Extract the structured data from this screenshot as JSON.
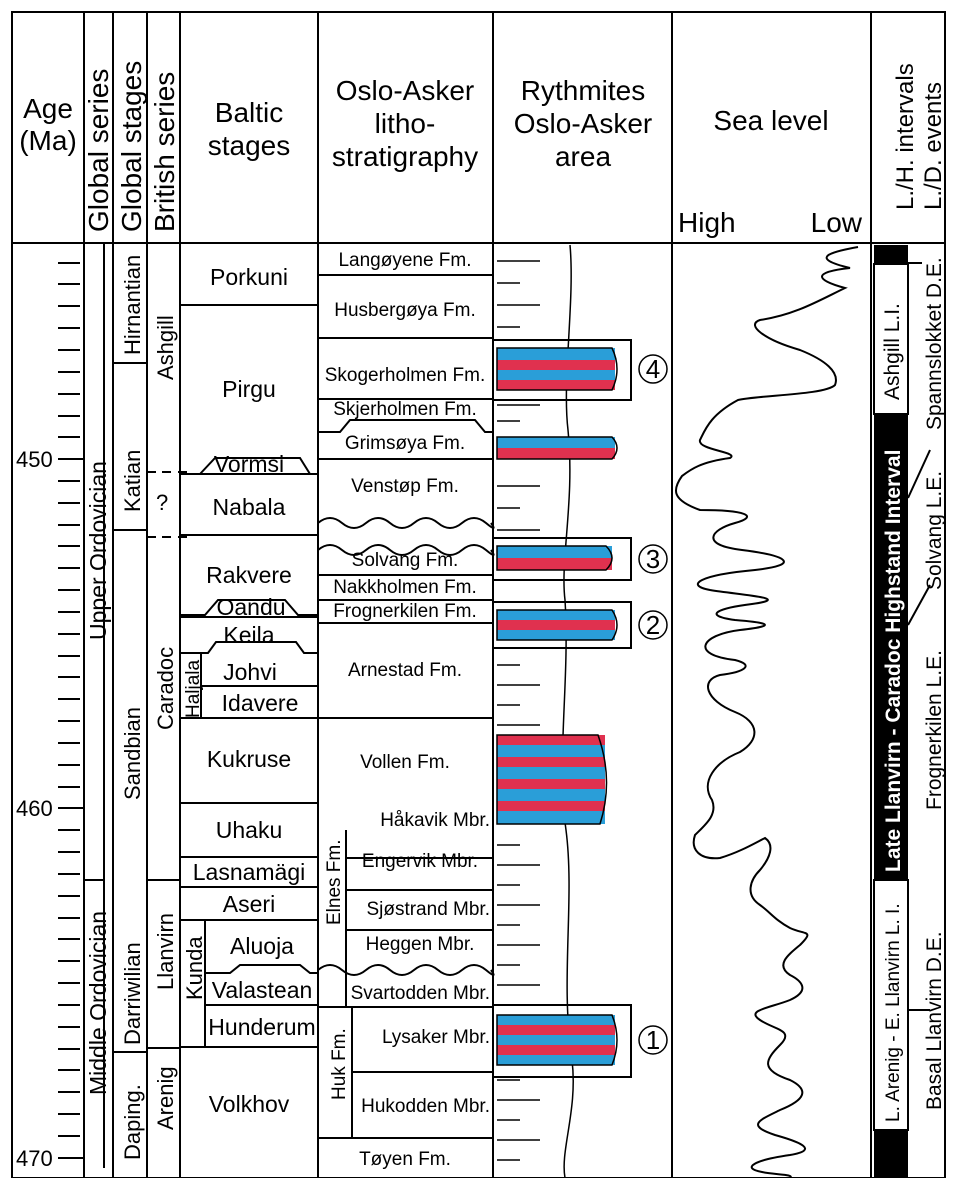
{
  "headers": {
    "age": [
      "Age",
      "(Ma)"
    ],
    "global_series": "Global series",
    "global_stages": "Global stages",
    "british_series": "British series",
    "baltic_stages": [
      "Baltic",
      "stages"
    ],
    "litho": [
      "Oslo-Asker",
      "litho-",
      "stratigraphy"
    ],
    "rythmites": [
      "Rythmites",
      "Oslo-Asker",
      "area"
    ],
    "sea_level": "Sea level",
    "sea_high": "High",
    "sea_low": "Low",
    "intervals": [
      "L./H. intervals",
      "L./D. events"
    ]
  },
  "age_labels": [
    "450",
    "460",
    "470"
  ],
  "global_series": [
    "Upper Ordovician",
    "Middle Ordovician"
  ],
  "global_stages": [
    "Hirnantian",
    "Katian",
    "Sandbian",
    "Darriwilian",
    "Daping."
  ],
  "british_series": [
    "Ashgill",
    "?",
    "Caradoc",
    "Llanvirn",
    "Arenig"
  ],
  "baltic_stages": [
    "Porkuni",
    "Pirgu",
    "Vormsi",
    "Nabala",
    "Rakvere",
    "Oandu",
    "Keila",
    "Johvi",
    "Idavere",
    "Haljala",
    "Kukruse",
    "Uhaku",
    "Lasnamägi",
    "Aseri",
    "Aluoja",
    "Valastean",
    "Hunderum",
    "Kunda",
    "Volkhov"
  ],
  "formations": [
    "Langøyene Fm.",
    "Husbergøya Fm.",
    "Skogerholmen Fm.",
    "Skjerholmen Fm.",
    "Grimsøya Fm.",
    "Venstøp Fm.",
    "Solvang Fm.",
    "Nakkholmen Fm.",
    "Frognerkilen Fm.",
    "Arnestad Fm.",
    "Vollen Fm.",
    "Håkavik Mbr.",
    "Engervik Mbr.",
    "Sjøstrand Mbr.",
    "Heggen Mbr.",
    "Svartodden Mbr.",
    "Lysaker Mbr.",
    "Hukodden Mbr.",
    "Tøyen Fm.",
    "Elnes Fm.",
    "Huk Fm."
  ],
  "rhythmite_markers": [
    "4",
    "3",
    "2",
    "1"
  ],
  "intervals": [
    "Ashgill L.I.",
    "Late Llanvirn - Caradoc Highstand Interval",
    "L. Arenig - E. Llanvirn L. I."
  ],
  "events": [
    "Spannslokket D.E.",
    "Solvang L.E.",
    "Frognerkilen L.E.",
    "Basal Llanvirn D.E."
  ],
  "colors": {
    "blue": "#2a9ed8",
    "red": "#e0314f",
    "ink": "#000000"
  }
}
